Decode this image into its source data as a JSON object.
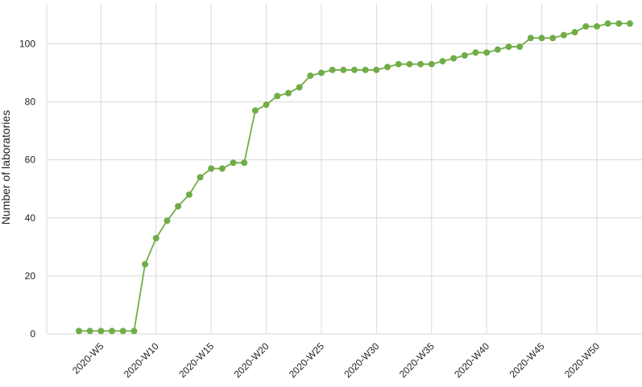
{
  "chart_data": {
    "type": "line",
    "y_label": "Number of laboratories",
    "categories": [
      null,
      null,
      "2020-W5",
      null,
      null,
      null,
      null,
      "2020-W10",
      null,
      null,
      null,
      null,
      "2020-W15",
      null,
      null,
      null,
      null,
      "2020-W20",
      null,
      null,
      null,
      null,
      "2020-W25",
      null,
      null,
      null,
      null,
      "2020-W30",
      null,
      null,
      null,
      null,
      "2020-W35",
      null,
      null,
      null,
      null,
      "2020-W40",
      null,
      null,
      null,
      null,
      "2020-W45",
      null,
      null,
      null,
      null,
      "2020-W50",
      null,
      null,
      null
    ],
    "series": [
      {
        "name": "Laboratories",
        "color": "#70ad47",
        "values": [
          1,
          1,
          1,
          1,
          1,
          1,
          24,
          33,
          39,
          44,
          48,
          54,
          57,
          57,
          59,
          59,
          77,
          79,
          82,
          83,
          85,
          89,
          90,
          91,
          91,
          91,
          91,
          91,
          92,
          93,
          93,
          93,
          93,
          94,
          95,
          96,
          97,
          97,
          98,
          99,
          99,
          102,
          102,
          102,
          103,
          104,
          106,
          106,
          107,
          107,
          107
        ]
      }
    ],
    "ylim": [
      0,
      114
    ],
    "yticks": [
      0,
      20,
      40,
      60,
      80,
      100
    ],
    "grid": true
  }
}
